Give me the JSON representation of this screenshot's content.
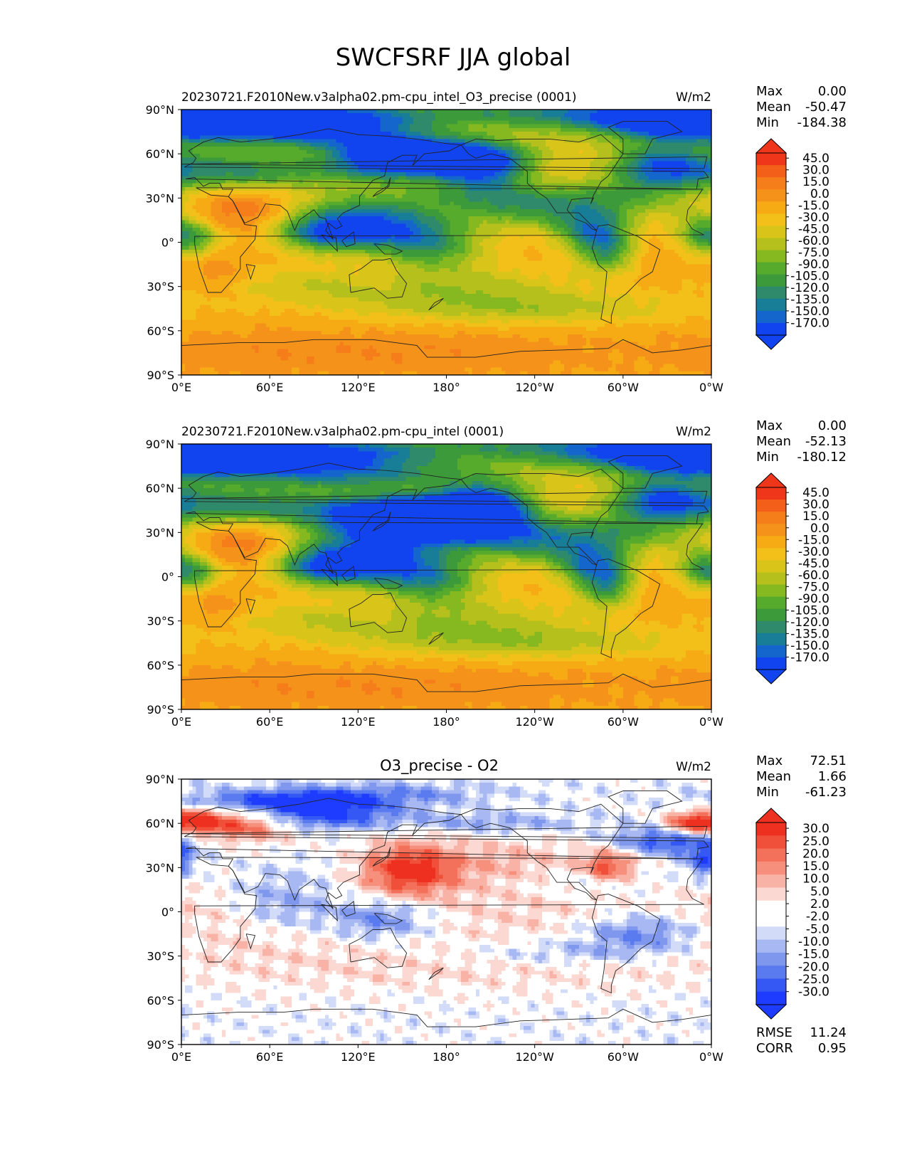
{
  "figure": {
    "title": "SWCFSRF JJA global"
  },
  "axis_ticks": {
    "lat": [
      "90°N",
      "60°N",
      "30°N",
      "0°",
      "30°S",
      "60°S",
      "90°S"
    ],
    "lon": [
      "0°E",
      "60°E",
      "120°E",
      "180°",
      "120°W",
      "60°W",
      "0°W"
    ]
  },
  "palettes": {
    "abs": [
      "#1144ee",
      "#1466cc",
      "#187e98",
      "#2e8a6a",
      "#3c9a3a",
      "#56aa2c",
      "#86b820",
      "#b6c01c",
      "#d9c41a",
      "#f2c018",
      "#f6aa14",
      "#f5921a",
      "#f57d1a",
      "#f35e18",
      "#f0361a"
    ],
    "diff": [
      "#1e3cff",
      "#3558f5",
      "#5a7af0",
      "#7f98ee",
      "#a7b8f2",
      "#d2dcf8",
      "#ffffff",
      "#ffffff",
      "#fbd8d2",
      "#f8b2a6",
      "#f6907d",
      "#f3705a",
      "#f0503a",
      "#ee3020"
    ]
  },
  "chart_data": [
    {
      "type": "contour-map",
      "subtitle": "20230721.F2010New.v3alpha02.pm-cpu_intel_O3_precise (0001)",
      "units": "W/m2",
      "stats": [
        {
          "label": "Max",
          "value": "0.00"
        },
        {
          "label": "Mean",
          "value": "-50.47"
        },
        {
          "label": "Min",
          "value": "-184.38"
        }
      ],
      "colorbar_levels": [
        "45.0",
        "30.0",
        "15.0",
        "0.0",
        "-15.0",
        "-30.0",
        "-45.0",
        "-60.0",
        "-75.0",
        "-90.0",
        "-105.0",
        "-120.0",
        "-135.0",
        "-150.0",
        "-170.0"
      ],
      "palette": "abs",
      "xlim": [
        0,
        360
      ],
      "ylim": [
        -90,
        90
      ],
      "blobs": [
        [
          0,
          90,
          360,
          8,
          -100
        ],
        [
          0,
          78,
          50,
          10,
          -120
        ],
        [
          60,
          82,
          60,
          6,
          -130
        ],
        [
          105,
          72,
          50,
          8,
          -110
        ],
        [
          300,
          82,
          60,
          8,
          -60
        ],
        [
          145,
          58,
          30,
          9,
          -150
        ],
        [
          180,
          58,
          35,
          8,
          -135
        ],
        [
          205,
          48,
          22,
          12,
          -110
        ],
        [
          325,
          52,
          25,
          10,
          -125
        ],
        [
          115,
          15,
          35,
          12,
          -95
        ],
        [
          95,
          5,
          22,
          8,
          -85
        ],
        [
          145,
          8,
          35,
          10,
          -90
        ],
        [
          170,
          -5,
          25,
          10,
          -75
        ],
        [
          280,
          8,
          18,
          10,
          -120
        ],
        [
          290,
          -8,
          14,
          10,
          -95
        ],
        [
          355,
          8,
          15,
          10,
          -85
        ],
        [
          10,
          2,
          15,
          8,
          -70
        ],
        [
          20,
          48,
          40,
          10,
          -75
        ],
        [
          80,
          48,
          60,
          8,
          -65
        ],
        [
          240,
          22,
          30,
          10,
          -70
        ],
        [
          300,
          30,
          40,
          10,
          -75
        ],
        [
          180,
          30,
          50,
          10,
          -55
        ],
        [
          200,
          -30,
          60,
          12,
          -40
        ],
        [
          100,
          -30,
          60,
          10,
          -40
        ],
        [
          240,
          -45,
          80,
          8,
          -45
        ],
        [
          25,
          22,
          25,
          14,
          30
        ],
        [
          55,
          22,
          18,
          10,
          25
        ],
        [
          25,
          -20,
          12,
          12,
          25
        ],
        [
          135,
          -25,
          18,
          8,
          20
        ],
        [
          230,
          60,
          40,
          10,
          -20
        ],
        [
          318,
          72,
          14,
          8,
          -10
        ],
        [
          300,
          -10,
          20,
          12,
          15
        ],
        [
          120,
          -75,
          120,
          10,
          20
        ]
      ]
    },
    {
      "type": "contour-map",
      "subtitle": "20230721.F2010New.v3alpha02.pm-cpu_intel (0001)",
      "units": "W/m2",
      "stats": [
        {
          "label": "Max",
          "value": "0.00"
        },
        {
          "label": "Mean",
          "value": "-52.13"
        },
        {
          "label": "Min",
          "value": "-180.12"
        }
      ],
      "colorbar_levels": [
        "45.0",
        "30.0",
        "15.0",
        "0.0",
        "-15.0",
        "-30.0",
        "-45.0",
        "-60.0",
        "-75.0",
        "-90.0",
        "-105.0",
        "-120.0",
        "-135.0",
        "-150.0",
        "-170.0"
      ],
      "palette": "abs",
      "xlim": [
        0,
        360
      ],
      "ylim": [
        -90,
        90
      ],
      "blobs": [
        [
          0,
          90,
          360,
          8,
          -100
        ],
        [
          0,
          78,
          50,
          10,
          -125
        ],
        [
          60,
          82,
          60,
          6,
          -130
        ],
        [
          115,
          70,
          60,
          8,
          -125
        ],
        [
          300,
          82,
          60,
          8,
          -60
        ],
        [
          145,
          40,
          40,
          10,
          -150
        ],
        [
          180,
          40,
          35,
          10,
          -140
        ],
        [
          205,
          48,
          22,
          12,
          -130
        ],
        [
          325,
          52,
          25,
          10,
          -130
        ],
        [
          115,
          15,
          35,
          12,
          -100
        ],
        [
          95,
          5,
          22,
          8,
          -90
        ],
        [
          145,
          8,
          35,
          10,
          -95
        ],
        [
          170,
          -5,
          25,
          10,
          -80
        ],
        [
          280,
          8,
          18,
          10,
          -125
        ],
        [
          290,
          -8,
          14,
          10,
          -100
        ],
        [
          355,
          8,
          15,
          10,
          -85
        ],
        [
          10,
          2,
          15,
          8,
          -75
        ],
        [
          20,
          48,
          40,
          10,
          -75
        ],
        [
          80,
          48,
          60,
          8,
          -65
        ],
        [
          240,
          22,
          30,
          10,
          -80
        ],
        [
          300,
          30,
          40,
          10,
          -80
        ],
        [
          180,
          30,
          50,
          10,
          -60
        ],
        [
          200,
          -30,
          60,
          12,
          -45
        ],
        [
          100,
          -30,
          60,
          10,
          -40
        ],
        [
          240,
          -45,
          80,
          8,
          -45
        ],
        [
          25,
          22,
          25,
          14,
          30
        ],
        [
          55,
          22,
          18,
          10,
          25
        ],
        [
          25,
          -20,
          12,
          12,
          25
        ],
        [
          135,
          -25,
          18,
          8,
          20
        ],
        [
          230,
          60,
          40,
          10,
          -20
        ],
        [
          318,
          72,
          14,
          8,
          -10
        ],
        [
          300,
          -10,
          20,
          12,
          15
        ],
        [
          120,
          -75,
          120,
          10,
          20
        ]
      ]
    },
    {
      "type": "contour-map",
      "subtitle": "O3_precise - O2",
      "units": "W/m2",
      "stats": [
        {
          "label": "Max",
          "value": "72.51"
        },
        {
          "label": "Mean",
          "value": "1.66"
        },
        {
          "label": "Min",
          "value": "-61.23"
        }
      ],
      "footer_stats": [
        {
          "label": "RMSE",
          "value": "11.24"
        },
        {
          "label": "CORR",
          "value": "0.95"
        }
      ],
      "colorbar_levels": [
        "30.0",
        "25.0",
        "20.0",
        "15.0",
        "10.0",
        "5.0",
        "2.0",
        "-2.0",
        "-5.0",
        "-10.0",
        "-15.0",
        "-20.0",
        "-25.0",
        "-30.0"
      ],
      "palette": "diff",
      "xlim": [
        0,
        360
      ],
      "ylim": [
        -90,
        90
      ],
      "blobs": [
        [
          40,
          60,
          25,
          8,
          32
        ],
        [
          10,
          62,
          12,
          6,
          25
        ],
        [
          345,
          60,
          12,
          6,
          30
        ],
        [
          155,
          28,
          22,
          12,
          32
        ],
        [
          290,
          30,
          12,
          8,
          25
        ],
        [
          150,
          60,
          40,
          6,
          18
        ],
        [
          220,
          35,
          50,
          12,
          10
        ],
        [
          250,
          0,
          80,
          20,
          8
        ],
        [
          60,
          -10,
          60,
          20,
          8
        ],
        [
          200,
          -40,
          140,
          12,
          6
        ],
        [
          90,
          68,
          45,
          7,
          -30
        ],
        [
          165,
          60,
          60,
          5,
          -22
        ],
        [
          330,
          48,
          25,
          6,
          -25
        ],
        [
          355,
          35,
          10,
          8,
          -22
        ],
        [
          120,
          80,
          60,
          5,
          -15
        ],
        [
          60,
          75,
          40,
          4,
          -15
        ],
        [
          70,
          5,
          25,
          15,
          -15
        ],
        [
          135,
          -5,
          25,
          10,
          -20
        ],
        [
          310,
          -15,
          30,
          10,
          -20
        ],
        [
          280,
          20,
          30,
          8,
          -10
        ],
        [
          250,
          -28,
          40,
          6,
          -10
        ]
      ]
    }
  ]
}
